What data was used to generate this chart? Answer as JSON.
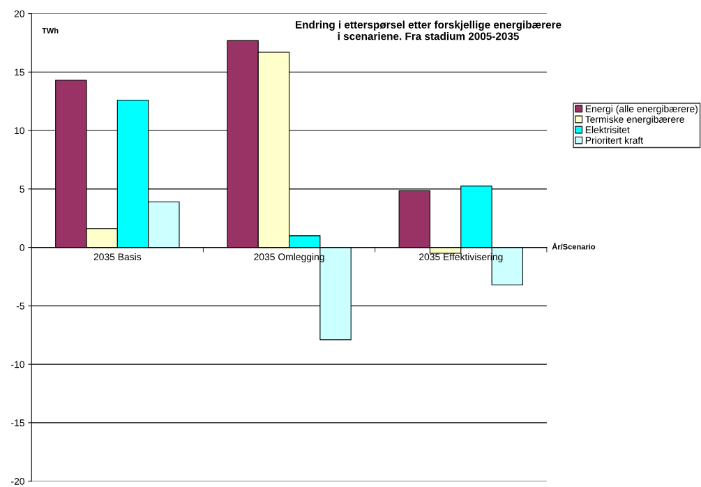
{
  "chart_data": {
    "type": "bar",
    "title": "Endring i etterspørsel etter forskjellige energibærere\ni scenariene. Fra stadium 2005-2035",
    "ylabel": "TWh",
    "xlabel": "År/Scenario",
    "categories": [
      "2035 Basis",
      "2035 Omlegging",
      "2035 Effektivisering"
    ],
    "series": [
      {
        "name": "Energi (alle energibærere)",
        "color": "#993366",
        "values": [
          14.3,
          17.7,
          4.85
        ]
      },
      {
        "name": "Termiske energibærere",
        "color": "#ffffcc",
        "values": [
          1.6,
          16.7,
          -0.5
        ]
      },
      {
        "name": "Elektrisitet",
        "color": "#00ffff",
        "values": [
          12.6,
          1.0,
          5.25
        ]
      },
      {
        "name": "Prioritert kraft",
        "color": "#ccffff",
        "values": [
          3.9,
          -7.9,
          -3.2
        ]
      }
    ],
    "ylim": [
      -20,
      20
    ],
    "yticks": [
      -20,
      -15,
      -10,
      -5,
      0,
      5,
      10,
      15,
      20
    ],
    "grid": "y",
    "legend": "right"
  }
}
